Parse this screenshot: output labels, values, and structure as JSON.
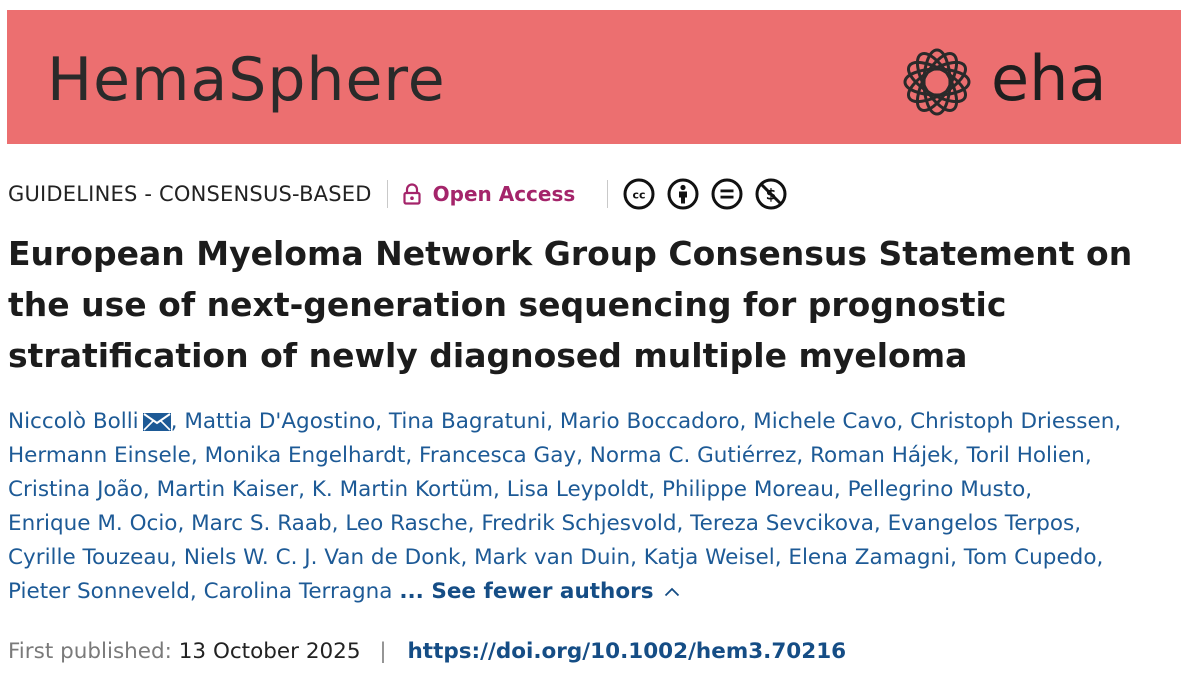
{
  "header": {
    "journal": "HemaSphere",
    "publisher_text": "eha",
    "colors": {
      "banner": "#ec6f70",
      "open_access": "#a4246a",
      "link": "#1d5a96"
    }
  },
  "meta": {
    "article_type": "GUIDELINES - CONSENSUS-BASED",
    "open_access_label": "Open Access",
    "license_icons": [
      "cc-icon",
      "by-icon",
      "nd-icon",
      "nc-icon"
    ]
  },
  "title": "European Myeloma Network Group Consensus Statement on the use of next-generation sequencing for prognostic stratification of newly diagnosed multiple myeloma",
  "authors": [
    "Niccolò Bolli",
    "Mattia D'Agostino",
    "Tina Bagratuni",
    "Mario Boccadoro",
    "Michele Cavo",
    "Christoph Driessen",
    "Hermann Einsele",
    "Monika Engelhardt",
    "Francesca Gay",
    "Norma C. Gutiérrez",
    "Roman Hájek",
    "Toril Holien",
    "Cristina João",
    "Martin Kaiser",
    "K. Martin Kortüm",
    "Lisa Leypoldt",
    "Philippe Moreau",
    "Pellegrino Musto",
    "Enrique M. Ocio",
    "Marc S. Raab",
    "Leo Rasche",
    "Fredrik Schjesvold",
    "Tereza Sevcikova",
    "Evangelos Terpos",
    "Cyrille Touzeau",
    "Niels W. C. J. Van de Donk",
    "Mark van Duin",
    "Katja Weisel",
    "Elena Zamagni",
    "Tom Cupedo",
    "Pieter Sonneveld",
    "Carolina Terragna"
  ],
  "authors_toggle": "... See fewer authors",
  "publication": {
    "label": "First published:",
    "date": "13 October 2025",
    "separator": "|",
    "doi": "https://doi.org/10.1002/hem3.70216"
  }
}
